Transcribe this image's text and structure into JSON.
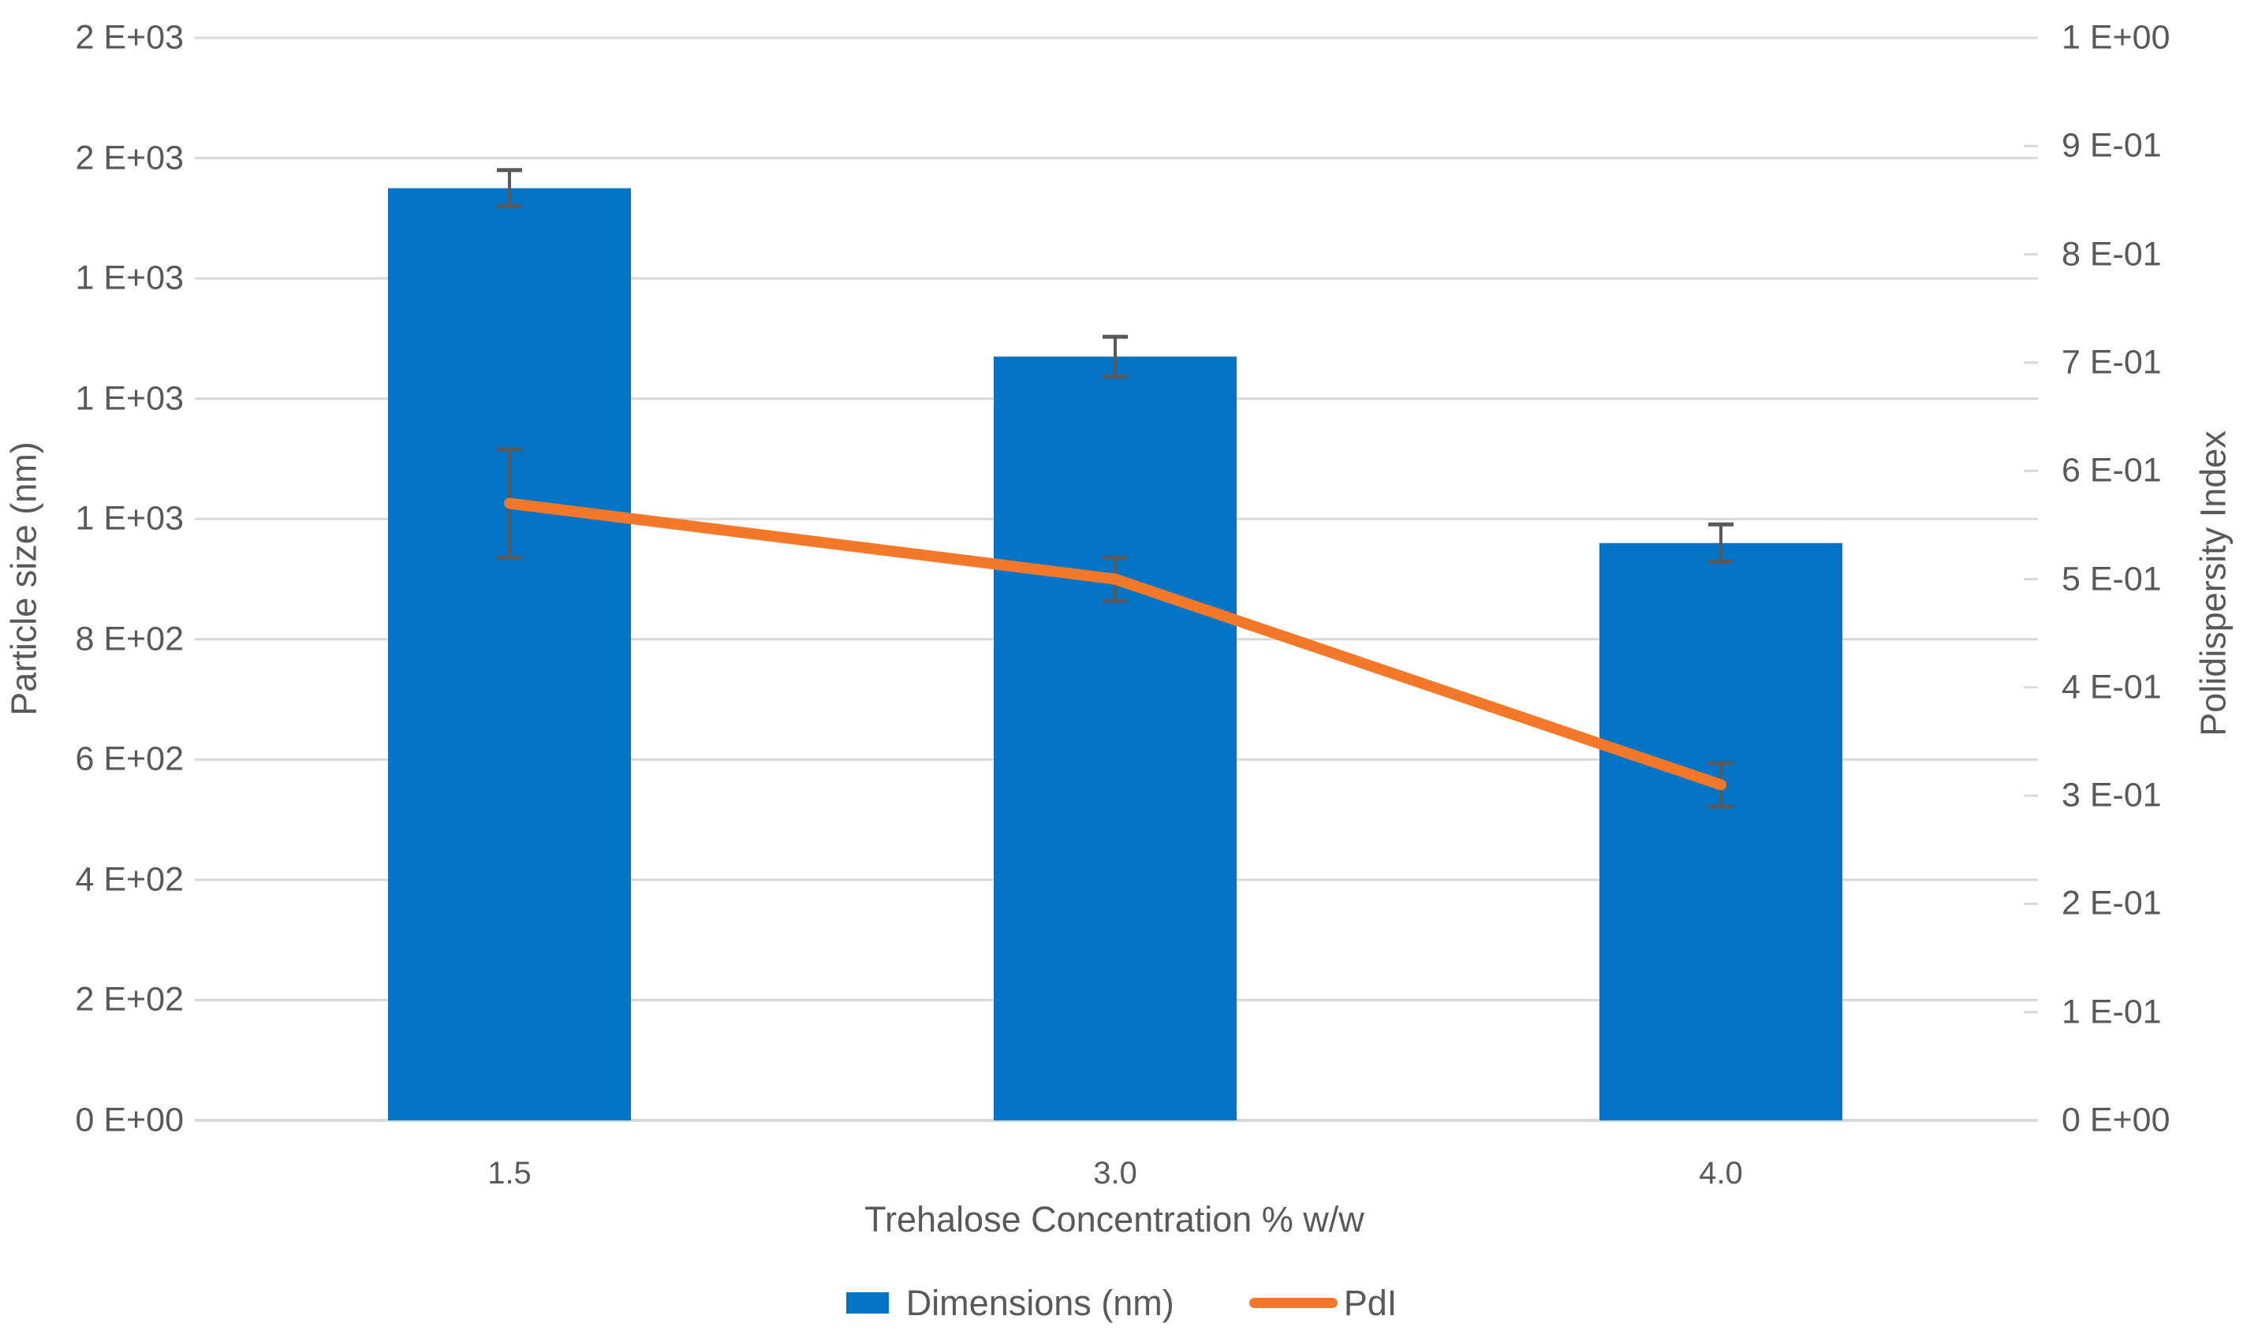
{
  "chart_data": {
    "type": "combo",
    "categories": [
      "1.5",
      "3.0",
      "4.0"
    ],
    "xlabel": "Trehalose Concentration % w/w",
    "ylabel_left": "Particle size (nm)",
    "ylabel_right": "Polidispersity Index",
    "grid": true,
    "legend_position": "bottom",
    "left_axis": {
      "min": 0,
      "max": 1800,
      "step": 200,
      "tick_labels_top_to_bottom": [
        "2 E+03",
        "2 E+03",
        "1 E+03",
        "1 E+03",
        "1 E+03",
        "8 E+02",
        "6 E+02",
        "4 E+02",
        "2 E+02",
        "0 E+00"
      ]
    },
    "right_axis": {
      "min": 0,
      "max": 1.0,
      "step": 0.1,
      "tick_labels_top_to_bottom": [
        "1 E+00",
        "9 E-01",
        "8 E-01",
        "7 E-01",
        "6 E-01",
        "5 E-01",
        "4 E-01",
        "3 E-01",
        "2 E-01",
        "1 E-01",
        "0 E+00"
      ]
    },
    "series": [
      {
        "name": "Dimensions (nm)",
        "type": "bar",
        "axis": "left",
        "color": "#0474C6",
        "values": [
          1550,
          1270,
          960
        ],
        "errors": [
          30,
          33,
          31
        ]
      },
      {
        "name": "PdI",
        "type": "line",
        "axis": "right",
        "color": "#F4782A",
        "values": [
          0.57,
          0.5,
          0.31
        ],
        "errors": [
          0.05,
          0.02,
          0.02
        ]
      }
    ],
    "colors": {
      "bar_blue": "#0474C6",
      "line_orange": "#F4782A",
      "text_gray": "#595959",
      "gridline_gray": "#D9D9D9",
      "error_bar_gray": "#595959"
    }
  }
}
